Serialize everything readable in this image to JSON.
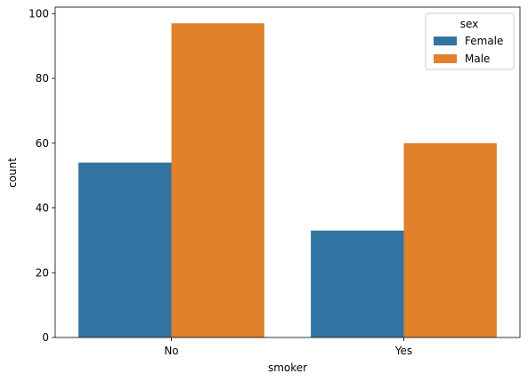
{
  "chart_data": {
    "type": "bar",
    "categories": [
      "No",
      "Yes"
    ],
    "series": [
      {
        "name": "Female",
        "values": [
          54,
          33
        ],
        "color": "#3274a1"
      },
      {
        "name": "Male",
        "values": [
          97,
          60
        ],
        "color": "#e1812c"
      }
    ],
    "title": "",
    "xlabel": "smoker",
    "ylabel": "count",
    "ylim": [
      0,
      102
    ],
    "yticks": [
      0,
      20,
      40,
      60,
      80,
      100
    ],
    "legend_title": "sex",
    "legend_position": "top-right",
    "grid": false
  }
}
